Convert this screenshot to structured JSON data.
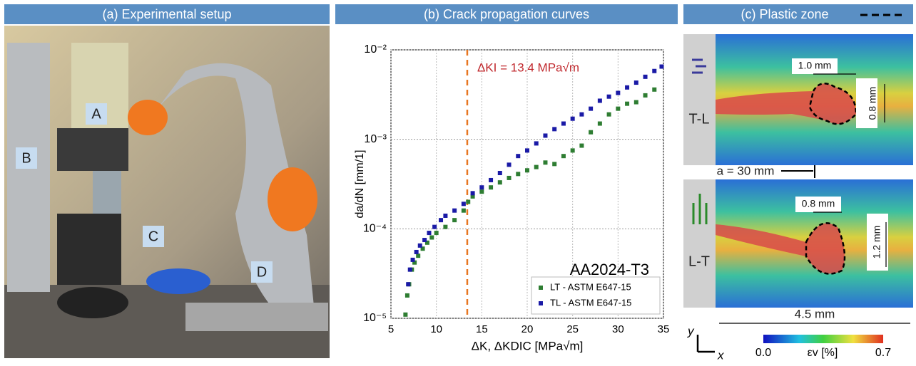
{
  "panels": {
    "a": {
      "title": "(a) Experimental setup",
      "labels": [
        "A",
        "B",
        "C",
        "D"
      ]
    },
    "c": {
      "title": "(c) Plastic zone",
      "top_label": "T-L",
      "bottom_label": "L-T",
      "top_width": "1.0 mm",
      "top_height": "0.8 mm",
      "crack_length": "a = 30 mm",
      "bottom_width": "0.8 mm",
      "bottom_height": "1.2 mm",
      "field_width": "4.5 mm",
      "axis_y": "y",
      "axis_x": "x",
      "cbar_min": "0.0",
      "cbar_label": "εv [%]",
      "cbar_max": "0.7"
    }
  },
  "chart_data": {
    "type": "scatter",
    "title": "(b) Crack propagation curves",
    "xlabel": "ΔK, ΔKDIC [MPa√m]",
    "ylabel": "da/dN [mm/1]",
    "annotation": "ΔKI = 13.4 MPa√m",
    "threshold_x": 13.4,
    "inner_label": "AA2024-T3",
    "xlim": [
      5,
      35
    ],
    "xticks": [
      5,
      10,
      15,
      20,
      25,
      30,
      35
    ],
    "ylim": [
      1e-05,
      0.01
    ],
    "log_y": true,
    "grid": true,
    "legend": "lower right",
    "yticks": [
      {
        "value": 1e-05,
        "label": "10⁻⁵"
      },
      {
        "value": 0.0001,
        "label": "10⁻⁴"
      },
      {
        "value": 0.001,
        "label": "10⁻³"
      },
      {
        "value": 0.01,
        "label": "10⁻²"
      }
    ],
    "series": [
      {
        "name": "LT - ASTM E647-15",
        "color": "#2e7d32",
        "x": [
          6.6,
          6.8,
          7.0,
          7.3,
          7.6,
          8,
          8.5,
          9,
          9.5,
          10,
          11,
          12,
          13,
          13.5,
          14,
          15,
          16,
          17,
          18,
          19,
          20,
          21,
          22,
          23,
          24,
          25,
          26,
          27,
          28,
          29,
          30,
          31,
          32,
          33,
          34
        ],
        "values": [
          1.1e-05,
          1.8e-05,
          2.4e-05,
          3.5e-05,
          4.2e-05,
          5e-05,
          6e-05,
          7e-05,
          8e-05,
          9e-05,
          0.000105,
          0.000125,
          0.00016,
          0.0002,
          0.00023,
          0.00026,
          0.00029,
          0.00033,
          0.00037,
          0.00041,
          0.00045,
          0.00049,
          0.00055,
          0.00053,
          0.00065,
          0.00075,
          0.00085,
          0.0012,
          0.0015,
          0.0019,
          0.0022,
          0.0025,
          0.0026,
          0.0031,
          0.0036
        ]
      },
      {
        "name": "TL - ASTM E647-15",
        "color": "#1a1aa6",
        "x": [
          6.9,
          7.1,
          7.4,
          7.8,
          8.2,
          8.7,
          9.2,
          9.8,
          10.5,
          11,
          12,
          13,
          14,
          15,
          16,
          17,
          18,
          19,
          20,
          21,
          22,
          23,
          24,
          25,
          26,
          27,
          28,
          29,
          30,
          31,
          32,
          33,
          34,
          34.8
        ],
        "values": [
          2.4e-05,
          3.5e-05,
          4.5e-05,
          5.5e-05,
          6.5e-05,
          7.5e-05,
          9e-05,
          0.000105,
          0.000125,
          0.00014,
          0.00016,
          0.00019,
          0.00025,
          0.00029,
          0.00035,
          0.00042,
          0.00052,
          0.00065,
          0.00075,
          0.0009,
          0.0011,
          0.0013,
          0.0015,
          0.0017,
          0.0019,
          0.0022,
          0.0027,
          0.003,
          0.0033,
          0.0038,
          0.0043,
          0.005,
          0.0058,
          0.0065
        ]
      }
    ]
  }
}
